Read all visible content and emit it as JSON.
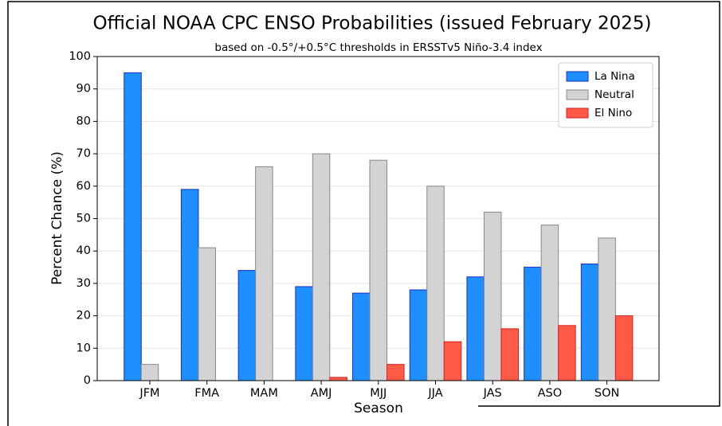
{
  "chart_data": {
    "type": "bar",
    "title": "Official NOAA CPC ENSO Probabilities (issued February 2025)",
    "subtitle": "based on -0.5°/+0.5°C thresholds in ERSSTv5 Niño-3.4 index",
    "xlabel": "Season",
    "ylabel": "Percent Chance (%)",
    "categories": [
      "JFM",
      "FMA",
      "MAM",
      "AMJ",
      "MJJ",
      "JJA",
      "JAS",
      "ASO",
      "SON"
    ],
    "series": [
      {
        "name": "La Nina",
        "color": "#1f8fff",
        "edgecolor": "#1a2fc8",
        "values": [
          95,
          59,
          34,
          29,
          27,
          28,
          32,
          35,
          36
        ]
      },
      {
        "name": "Neutral",
        "color": "#d3d3d3",
        "edgecolor": "#888888",
        "values": [
          5,
          41,
          66,
          70,
          68,
          60,
          52,
          48,
          44
        ]
      },
      {
        "name": "El Nino",
        "color": "#ff5a45",
        "edgecolor": "#d81e1e",
        "values": [
          0,
          0,
          0,
          1,
          5,
          12,
          16,
          17,
          20
        ]
      }
    ],
    "ylim": [
      0,
      100
    ],
    "yticks": [
      0,
      10,
      20,
      30,
      40,
      50,
      60,
      70,
      80,
      90,
      100
    ],
    "grid": true,
    "legend": "upper right"
  }
}
